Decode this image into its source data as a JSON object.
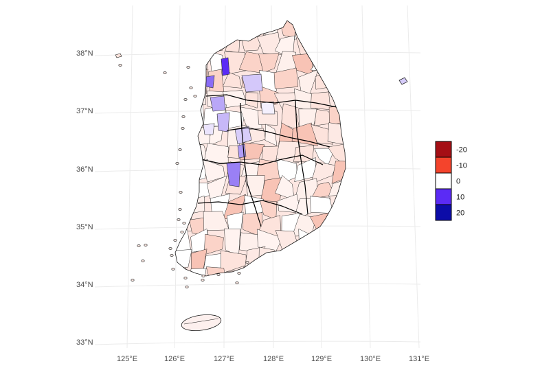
{
  "map": {
    "lat_ticks": [
      "33°N",
      "34°N",
      "35°N",
      "36°N",
      "37°N",
      "38°N"
    ],
    "lon_ticks": [
      "125°E",
      "126°E",
      "127°E",
      "128°E",
      "129°E",
      "130°E",
      "131°E"
    ],
    "grid": true,
    "legend_position": "right",
    "colors": {
      "grid": "#ebebeb",
      "border": "#1a1a1a",
      "land_base": "#fde7e2",
      "scale": [
        "#b2182b",
        "#f4442c",
        "#ffffff",
        "#5b2bf5",
        "#0c0c9e"
      ]
    },
    "legend": {
      "items": [
        {
          "value": -20,
          "label": "-20",
          "color": "#a50f15"
        },
        {
          "value": -10,
          "label": "-10",
          "color": "#f4442c"
        },
        {
          "value": 0,
          "label": "0",
          "color": "#ffffff"
        },
        {
          "value": 10,
          "label": "10",
          "color": "#5b2bf5"
        },
        {
          "value": 20,
          "label": "20",
          "color": "#0c0ca8"
        }
      ]
    }
  }
}
